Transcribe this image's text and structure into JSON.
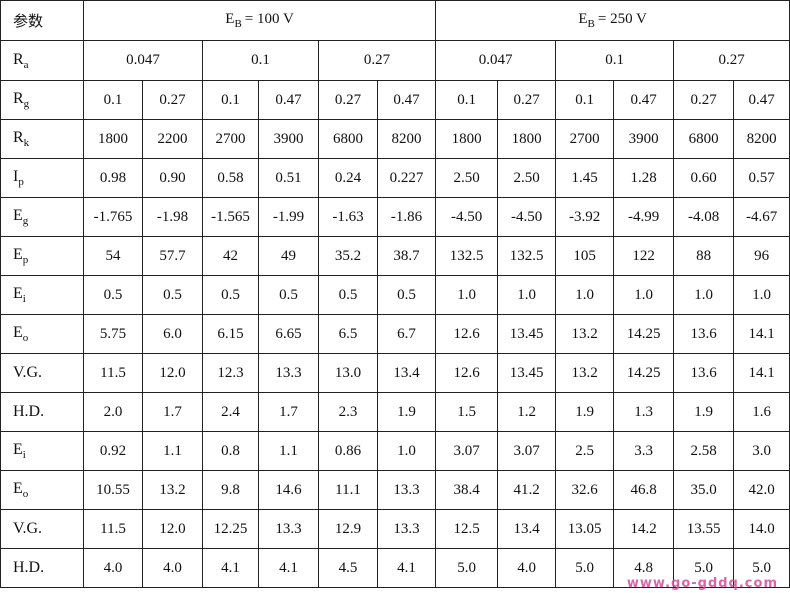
{
  "table": {
    "corner": "参数",
    "groups": [
      {
        "main": "E",
        "sub": "B",
        "rest": "= 100 V"
      },
      {
        "main": "E",
        "sub": "B",
        "rest": "= 250 V"
      }
    ],
    "ra": {
      "label": {
        "main": "R",
        "sub": "a"
      },
      "cells": [
        "0.047",
        "0.1",
        "0.27",
        "0.047",
        "0.1",
        "0.27"
      ]
    },
    "rows": [
      {
        "label": {
          "main": "R",
          "sub": "g"
        },
        "cells": [
          "0.1",
          "0.27",
          "0.1",
          "0.47",
          "0.27",
          "0.47",
          "0.1",
          "0.27",
          "0.1",
          "0.47",
          "0.27",
          "0.47"
        ]
      },
      {
        "label": {
          "main": "R",
          "sub": "k"
        },
        "cells": [
          "1800",
          "2200",
          "2700",
          "3900",
          "6800",
          "8200",
          "1800",
          "1800",
          "2700",
          "3900",
          "6800",
          "8200"
        ]
      },
      {
        "label": {
          "main": "I",
          "sub": "p"
        },
        "cells": [
          "0.98",
          "0.90",
          "0.58",
          "0.51",
          "0.24",
          "0.227",
          "2.50",
          "2.50",
          "1.45",
          "1.28",
          "0.60",
          "0.57"
        ]
      },
      {
        "label": {
          "main": "E",
          "sub": "g"
        },
        "cells": [
          "-1.765",
          "-1.98",
          "-1.565",
          "-1.99",
          "-1.63",
          "-1.86",
          "-4.50",
          "-4.50",
          "-3.92",
          "-4.99",
          "-4.08",
          "-4.67"
        ]
      },
      {
        "label": {
          "main": "E",
          "sub": "p"
        },
        "cells": [
          "54",
          "57.7",
          "42",
          "49",
          "35.2",
          "38.7",
          "132.5",
          "132.5",
          "105",
          "122",
          "88",
          "96"
        ]
      },
      {
        "label": {
          "main": "E",
          "sub": "i"
        },
        "cells": [
          "0.5",
          "0.5",
          "0.5",
          "0.5",
          "0.5",
          "0.5",
          "1.0",
          "1.0",
          "1.0",
          "1.0",
          "1.0",
          "1.0"
        ]
      },
      {
        "label": {
          "main": "E",
          "sub": "o"
        },
        "cells": [
          "5.75",
          "6.0",
          "6.15",
          "6.65",
          "6.5",
          "6.7",
          "12.6",
          "13.45",
          "13.2",
          "14.25",
          "13.6",
          "14.1"
        ]
      },
      {
        "label": {
          "main": "V.G."
        },
        "cells": [
          "11.5",
          "12.0",
          "12.3",
          "13.3",
          "13.0",
          "13.4",
          "12.6",
          "13.45",
          "13.2",
          "14.25",
          "13.6",
          "14.1"
        ]
      },
      {
        "label": {
          "main": "H.D."
        },
        "cells": [
          "2.0",
          "1.7",
          "2.4",
          "1.7",
          "2.3",
          "1.9",
          "1.5",
          "1.2",
          "1.9",
          "1.3",
          "1.9",
          "1.6"
        ]
      },
      {
        "label": {
          "main": "E",
          "sub": "i"
        },
        "cells": [
          "0.92",
          "1.1",
          "0.8",
          "1.1",
          "0.86",
          "1.0",
          "3.07",
          "3.07",
          "2.5",
          "3.3",
          "2.58",
          "3.0"
        ]
      },
      {
        "label": {
          "main": "E",
          "sub": "o"
        },
        "cells": [
          "10.55",
          "13.2",
          "9.8",
          "14.6",
          "11.1",
          "13.3",
          "38.4",
          "41.2",
          "32.6",
          "46.8",
          "35.0",
          "42.0"
        ]
      },
      {
        "label": {
          "main": "V.G."
        },
        "cells": [
          "11.5",
          "12.0",
          "12.25",
          "13.3",
          "12.9",
          "13.3",
          "12.5",
          "13.4",
          "13.05",
          "14.2",
          "13.55",
          "14.0"
        ]
      },
      {
        "label": {
          "main": "H.D."
        },
        "cells": [
          "4.0",
          "4.0",
          "4.1",
          "4.1",
          "4.5",
          "4.1",
          "5.0",
          "4.0",
          "5.0",
          "4.8",
          "5.0",
          "5.0"
        ]
      }
    ]
  },
  "watermark": "www.go-gddq.com"
}
